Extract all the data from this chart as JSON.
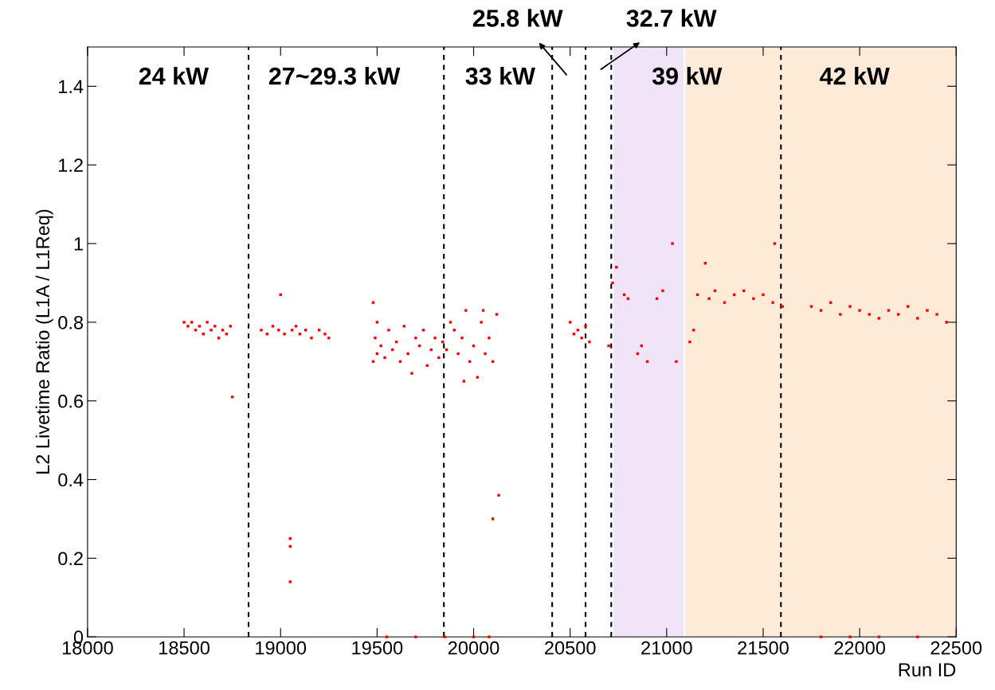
{
  "chart_data": {
    "type": "scatter",
    "xlabel": "Run ID",
    "ylabel": "L2 Livetime Ratio (L1A / L1Req)",
    "xlim": [
      18000,
      22500
    ],
    "ylim": [
      0,
      1.5
    ],
    "xticks": [
      18000,
      18500,
      19000,
      19500,
      20000,
      20500,
      21000,
      21500,
      22000,
      22500
    ],
    "yticks": [
      0,
      0.2,
      0.4,
      0.6,
      0.8,
      1,
      1.2,
      1.4
    ],
    "grid": false,
    "legend": false,
    "marker": "square",
    "series": [
      {
        "color": "#ff0000",
        "x": [
          18500,
          18520,
          18540,
          18560,
          18580,
          18600,
          18620,
          18640,
          18660,
          18680,
          18700,
          18720,
          18740,
          18750,
          18900,
          18930,
          18960,
          18990,
          19000,
          19020,
          19050,
          19050,
          19050,
          19060,
          19080,
          19100,
          19130,
          19160,
          19200,
          19230,
          19250,
          19480,
          19480,
          19490,
          19500,
          19500,
          19520,
          19540,
          19560,
          19580,
          19600,
          19620,
          19640,
          19660,
          19680,
          19700,
          19720,
          19740,
          19760,
          19780,
          19800,
          19820,
          19840,
          19860,
          19880,
          19900,
          19920,
          19940,
          19960,
          19980,
          20000,
          20020,
          20040,
          20060,
          20080,
          20100,
          20120,
          20100,
          20130,
          19950,
          20050,
          20500,
          20520,
          20540,
          20560,
          20580,
          20600,
          20700,
          20720,
          20740,
          20780,
          20800,
          20850,
          20870,
          20900,
          20950,
          20980,
          21030,
          21050,
          21120,
          21140,
          21160,
          21200,
          21220,
          21250,
          21300,
          21350,
          21400,
          21450,
          21500,
          21550,
          21560,
          21600,
          21750,
          21800,
          21850,
          21900,
          21950,
          22000,
          22050,
          22100,
          22150,
          22200,
          22250,
          22300,
          22350,
          22400,
          22450,
          19550,
          19700,
          19850,
          20000,
          20080,
          21800,
          21950,
          22100,
          22300
        ],
        "values": [
          0.8,
          0.79,
          0.8,
          0.78,
          0.79,
          0.77,
          0.8,
          0.78,
          0.79,
          0.76,
          0.78,
          0.77,
          0.79,
          0.61,
          0.78,
          0.77,
          0.79,
          0.78,
          0.87,
          0.77,
          0.25,
          0.23,
          0.14,
          0.78,
          0.79,
          0.77,
          0.78,
          0.76,
          0.78,
          0.77,
          0.76,
          0.85,
          0.7,
          0.76,
          0.8,
          0.72,
          0.74,
          0.71,
          0.78,
          0.73,
          0.75,
          0.7,
          0.79,
          0.72,
          0.67,
          0.76,
          0.74,
          0.78,
          0.69,
          0.73,
          0.76,
          0.71,
          0.75,
          0.73,
          0.8,
          0.78,
          0.72,
          0.76,
          0.83,
          0.7,
          0.74,
          0.66,
          0.8,
          0.72,
          0.76,
          0.7,
          0.82,
          0.3,
          0.36,
          0.65,
          0.83,
          0.8,
          0.77,
          0.78,
          0.76,
          0.79,
          0.75,
          0.74,
          0.9,
          0.94,
          0.87,
          0.86,
          0.72,
          0.74,
          0.7,
          0.86,
          0.88,
          1.0,
          0.7,
          0.75,
          0.78,
          0.87,
          0.95,
          0.86,
          0.88,
          0.85,
          0.87,
          0.88,
          0.86,
          0.87,
          0.85,
          1.0,
          0.84,
          0.84,
          0.83,
          0.85,
          0.82,
          0.84,
          0.83,
          0.82,
          0.81,
          0.83,
          0.82,
          0.84,
          0.81,
          0.83,
          0.82,
          0.8,
          0.0,
          0.0,
          0.0,
          0.0,
          0.0,
          0.0,
          0.0,
          0.0,
          0.0
        ]
      }
    ],
    "ref_lines": [
      {
        "axis": "x",
        "value": 18834,
        "line_style": "dashed",
        "color": "#000000"
      },
      {
        "axis": "x",
        "value": 19846,
        "line_style": "dashed",
        "color": "#000000"
      },
      {
        "axis": "x",
        "value": 20407,
        "line_style": "dashed",
        "color": "#000000"
      },
      {
        "axis": "x",
        "value": 20580,
        "line_style": "dashed",
        "color": "#000000"
      },
      {
        "axis": "x",
        "value": 20713,
        "line_style": "dashed",
        "color": "#000000"
      },
      {
        "axis": "x",
        "value": 21592,
        "line_style": "dashed",
        "color": "#000000"
      }
    ],
    "bands": [
      {
        "axis": "x",
        "from": 20725,
        "to": 21088,
        "color": "#efe4f8"
      },
      {
        "axis": "x",
        "from": 21097,
        "to": 22500,
        "color": "#fdebd8"
      }
    ],
    "annotations": [
      "24 kW",
      "27~29.3 kW",
      "33 kW",
      "39 kW",
      "42 kW",
      "25.8 kW",
      "32.7 kW"
    ]
  }
}
